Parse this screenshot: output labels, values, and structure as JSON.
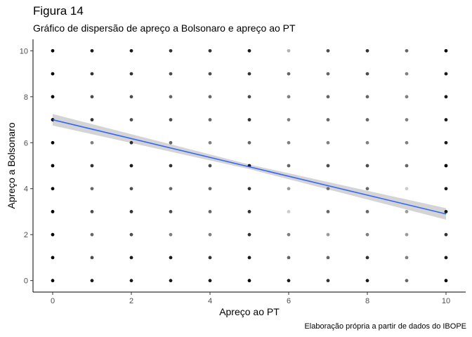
{
  "header": {
    "title": "Figura 14",
    "subtitle": "Gráfico de dispersão de apreço a Bolsonaro e apreço ao PT"
  },
  "caption": "Elaboração própria a partir de dados do IBOPE",
  "chart_data": {
    "type": "scatter",
    "title": "Figura 14",
    "subtitle": "Gráfico de dispersão de apreço a Bolsonaro e apreço ao PT",
    "xlabel": "Apreço ao PT",
    "ylabel": "Apreço a Bolsonaro",
    "xlim": [
      -0.5,
      10.5
    ],
    "ylim": [
      -0.5,
      10.5
    ],
    "xticks": [
      "0",
      "2",
      "4",
      "6",
      "8",
      "10"
    ],
    "yticks": [
      "0",
      "2",
      "4",
      "6",
      "8",
      "10"
    ],
    "grid": false,
    "point_color": "#000000",
    "point_opacity": [
      [
        1.0,
        0.9,
        0.9,
        0.9,
        0.9,
        1.0,
        0.9,
        0.8,
        0.9,
        0.6,
        1.0
      ],
      [
        1.0,
        0.7,
        0.9,
        0.9,
        0.8,
        0.9,
        0.6,
        0.6,
        0.8,
        0.5,
        0.9
      ],
      [
        1.0,
        0.6,
        0.7,
        0.5,
        0.5,
        0.8,
        0.5,
        0.4,
        0.5,
        0.4,
        0.8
      ],
      [
        1.0,
        0.7,
        0.8,
        0.7,
        0.6,
        0.8,
        0.2,
        0.6,
        0.6,
        0.4,
        0.9
      ],
      [
        1.0,
        0.6,
        0.7,
        0.6,
        0.6,
        0.8,
        0.4,
        0.5,
        0.6,
        0.2,
        0.9
      ],
      [
        1.0,
        0.8,
        0.9,
        0.8,
        0.7,
        0.9,
        0.6,
        0.7,
        0.7,
        0.6,
        1.0
      ],
      [
        1.0,
        0.5,
        0.8,
        0.6,
        0.5,
        0.6,
        0.5,
        0.5,
        0.5,
        0.5,
        0.9
      ],
      [
        1.0,
        0.8,
        0.7,
        0.7,
        0.6,
        0.8,
        0.5,
        0.6,
        0.6,
        0.5,
        0.9
      ],
      [
        1.0,
        0.7,
        0.7,
        0.6,
        0.6,
        0.7,
        0.5,
        0.6,
        0.6,
        0.5,
        0.9
      ],
      [
        1.0,
        0.8,
        0.8,
        0.7,
        0.7,
        0.8,
        0.6,
        0.6,
        0.7,
        0.5,
        0.9
      ],
      [
        1.0,
        0.9,
        0.9,
        0.8,
        0.8,
        0.9,
        0.3,
        0.7,
        0.8,
        0.6,
        1.0
      ]
    ],
    "trend_line": {
      "color": "#3366FF",
      "ribbon_color": "#cccccc",
      "points": [
        {
          "x": 0,
          "y": 7.0,
          "ymin": 6.75,
          "ymax": 7.25
        },
        {
          "x": 5,
          "y": 4.95,
          "ymin": 4.85,
          "ymax": 5.05
        },
        {
          "x": 10,
          "y": 2.9,
          "ymin": 2.65,
          "ymax": 3.15
        }
      ]
    }
  }
}
